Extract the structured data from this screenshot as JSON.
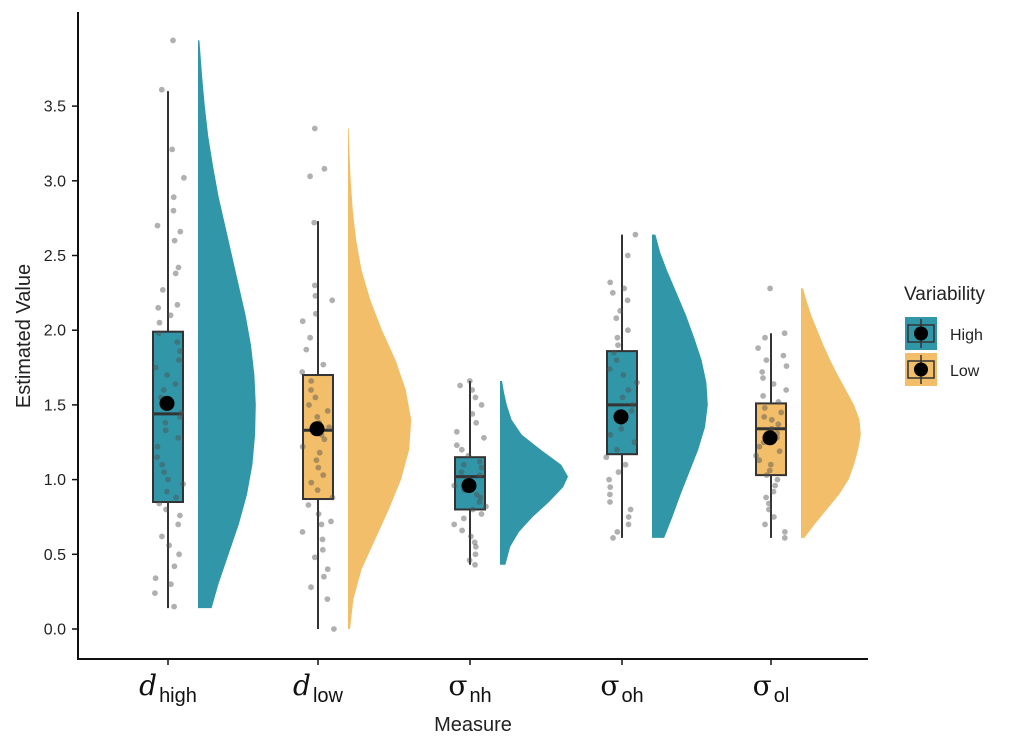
{
  "chart_data": {
    "type": "raincloud",
    "xlabel": "Measure",
    "ylabel": "Estimated Value",
    "ylim": [
      -0.2,
      4.1
    ],
    "yticks": [
      "0.0",
      "0.5",
      "1.0",
      "1.5",
      "2.0",
      "2.5",
      "3.0",
      "3.5"
    ],
    "grid": false,
    "legend": {
      "title": "Variability",
      "position": "right",
      "entries": [
        {
          "label": "High",
          "color": "#3196a8"
        },
        {
          "label": "Low",
          "color": "#f2be6a"
        }
      ]
    },
    "categories": [
      {
        "base": "d",
        "sub": "high",
        "base_style": "italic",
        "group": "High",
        "box": {
          "min": 0.14,
          "q1": 0.85,
          "median": 1.44,
          "q3": 1.99,
          "max": 3.6
        },
        "mean": 1.51,
        "density": {
          "ys": [
            0.14,
            0.3,
            0.5,
            0.7,
            0.9,
            1.1,
            1.3,
            1.5,
            1.7,
            1.9,
            2.1,
            2.3,
            2.5,
            2.7,
            2.9,
            3.1,
            3.3,
            3.5,
            3.7,
            3.94
          ],
          "ds": [
            0.2,
            0.3,
            0.45,
            0.6,
            0.72,
            0.8,
            0.84,
            0.85,
            0.83,
            0.78,
            0.7,
            0.6,
            0.5,
            0.4,
            0.3,
            0.22,
            0.15,
            0.1,
            0.06,
            0.02
          ]
        },
        "points": [
          3.94,
          3.61,
          3.21,
          3.02,
          2.89,
          2.8,
          2.7,
          2.66,
          2.6,
          2.42,
          2.38,
          2.27,
          2.17,
          2.15,
          2.1,
          2.05,
          1.98,
          1.92,
          1.86,
          1.8,
          1.75,
          1.7,
          1.64,
          1.6,
          1.55,
          1.5,
          1.45,
          1.42,
          1.38,
          1.33,
          1.28,
          1.22,
          1.15,
          1.1,
          1.05,
          1.0,
          0.97,
          0.92,
          0.88,
          0.84,
          0.8,
          0.76,
          0.7,
          0.62,
          0.56,
          0.5,
          0.42,
          0.34,
          0.3,
          0.24,
          0.15
        ]
      },
      {
        "base": "d",
        "sub": "low",
        "base_style": "italic",
        "group": "Low",
        "box": {
          "min": 0.0,
          "q1": 0.87,
          "median": 1.33,
          "q3": 1.7,
          "max": 2.73
        },
        "mean": 1.34,
        "density": {
          "ys": [
            0.0,
            0.2,
            0.4,
            0.6,
            0.8,
            1.0,
            1.2,
            1.4,
            1.6,
            1.8,
            2.0,
            2.2,
            2.4,
            2.6,
            2.8,
            3.0,
            3.2,
            3.35
          ],
          "ds": [
            0.03,
            0.08,
            0.2,
            0.4,
            0.6,
            0.78,
            0.9,
            0.93,
            0.85,
            0.7,
            0.5,
            0.33,
            0.2,
            0.12,
            0.07,
            0.04,
            0.02,
            0.01
          ]
        },
        "points": [
          3.35,
          3.08,
          3.03,
          2.72,
          2.3,
          2.23,
          2.2,
          2.11,
          2.06,
          1.95,
          1.87,
          1.77,
          1.72,
          1.66,
          1.6,
          1.55,
          1.5,
          1.46,
          1.42,
          1.38,
          1.35,
          1.3,
          1.27,
          1.22,
          1.18,
          1.13,
          1.08,
          1.03,
          0.98,
          0.93,
          0.88,
          0.83,
          0.77,
          0.72,
          0.7,
          0.65,
          0.6,
          0.53,
          0.48,
          0.4,
          0.35,
          0.28,
          0.2,
          0.0
        ]
      },
      {
        "base": "σ",
        "sub": "nh",
        "base_style": "normal",
        "group": "High",
        "box": {
          "min": 0.43,
          "q1": 0.8,
          "median": 1.02,
          "q3": 1.15,
          "max": 1.66
        },
        "mean": 0.96,
        "density": {
          "ys": [
            0.43,
            0.55,
            0.65,
            0.75,
            0.85,
            0.95,
            1.02,
            1.1,
            1.2,
            1.3,
            1.4,
            1.5,
            1.58,
            1.66
          ],
          "ds": [
            0.08,
            0.15,
            0.28,
            0.48,
            0.72,
            0.93,
            1.0,
            0.9,
            0.6,
            0.32,
            0.17,
            0.1,
            0.06,
            0.03
          ]
        },
        "points": [
          1.66,
          1.63,
          1.6,
          1.55,
          1.5,
          1.44,
          1.38,
          1.32,
          1.28,
          1.23,
          1.2,
          1.16,
          1.12,
          1.1,
          1.08,
          1.05,
          1.03,
          1.0,
          0.98,
          0.96,
          0.93,
          0.9,
          0.88,
          0.85,
          0.82,
          0.8,
          0.77,
          0.74,
          0.7,
          0.66,
          0.62,
          0.58,
          0.55,
          0.5,
          0.46,
          0.43
        ]
      },
      {
        "base": "σ",
        "sub": "oh",
        "base_style": "normal",
        "group": "High",
        "box": {
          "min": 0.61,
          "q1": 1.17,
          "median": 1.5,
          "q3": 1.86,
          "max": 2.64
        },
        "mean": 1.42,
        "density": {
          "ys": [
            0.61,
            0.75,
            0.9,
            1.05,
            1.2,
            1.35,
            1.5,
            1.65,
            1.8,
            1.95,
            2.1,
            2.25,
            2.4,
            2.52,
            2.64
          ],
          "ds": [
            0.18,
            0.3,
            0.42,
            0.55,
            0.68,
            0.78,
            0.82,
            0.8,
            0.73,
            0.62,
            0.5,
            0.36,
            0.22,
            0.12,
            0.05
          ]
        },
        "points": [
          2.64,
          2.5,
          2.32,
          2.28,
          2.25,
          2.2,
          2.13,
          2.08,
          2.0,
          1.95,
          1.9,
          1.85,
          1.8,
          1.74,
          1.7,
          1.65,
          1.6,
          1.55,
          1.5,
          1.46,
          1.42,
          1.38,
          1.34,
          1.3,
          1.25,
          1.2,
          1.15,
          1.1,
          1.05,
          1.0,
          0.95,
          0.9,
          0.85,
          0.8,
          0.75,
          0.7,
          0.65,
          0.61
        ]
      },
      {
        "base": "σ",
        "sub": "ol",
        "base_style": "normal",
        "group": "Low",
        "box": {
          "min": 0.61,
          "q1": 1.03,
          "median": 1.34,
          "q3": 1.51,
          "max": 1.98
        },
        "mean": 1.28,
        "density": {
          "ys": [
            0.61,
            0.7,
            0.8,
            0.9,
            1.0,
            1.1,
            1.2,
            1.3,
            1.4,
            1.5,
            1.6,
            1.7,
            1.8,
            1.9,
            2.0,
            2.1,
            2.2,
            2.28
          ],
          "ds": [
            0.05,
            0.2,
            0.38,
            0.56,
            0.7,
            0.78,
            0.84,
            0.88,
            0.86,
            0.78,
            0.66,
            0.54,
            0.43,
            0.33,
            0.24,
            0.15,
            0.08,
            0.03
          ]
        },
        "points": [
          2.28,
          1.98,
          1.95,
          1.88,
          1.83,
          1.8,
          1.76,
          1.72,
          1.68,
          1.64,
          1.6,
          1.56,
          1.52,
          1.48,
          1.45,
          1.42,
          1.4,
          1.37,
          1.34,
          1.31,
          1.28,
          1.25,
          1.22,
          1.19,
          1.16,
          1.13,
          1.1,
          1.06,
          1.03,
          1.0,
          0.96,
          0.92,
          0.88,
          0.84,
          0.8,
          0.75,
          0.7,
          0.65,
          0.61
        ]
      }
    ]
  }
}
